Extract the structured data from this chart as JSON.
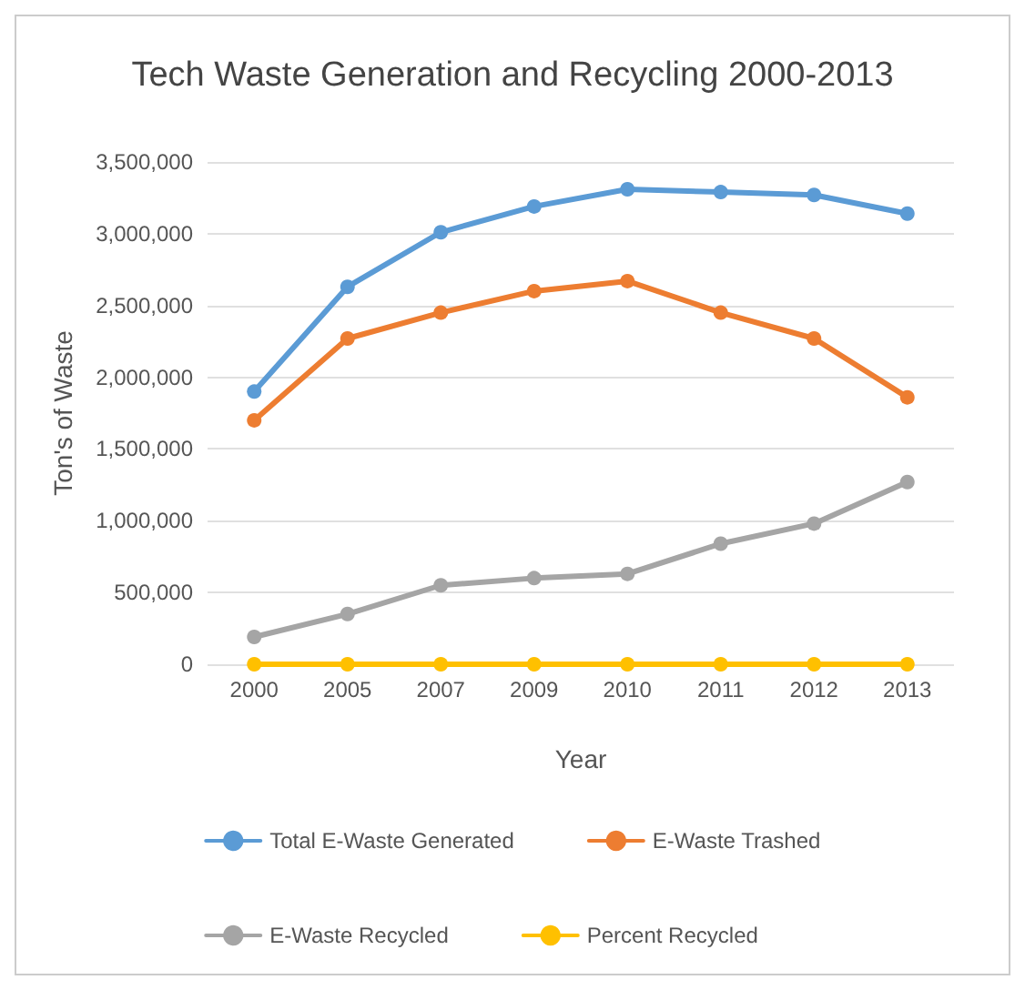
{
  "chart_data": {
    "type": "line",
    "title": "Tech Waste Generation and Recycling 2000-2013",
    "xlabel": "Year",
    "ylabel": "Ton's of Waste",
    "categories": [
      "2000",
      "2005",
      "2007",
      "2009",
      "2010",
      "2011",
      "2012",
      "2013"
    ],
    "series": [
      {
        "name": "Total E-Waste Generated",
        "color": "#5b9bd5",
        "values": [
          1900000,
          2630000,
          3010000,
          3190000,
          3310000,
          3290000,
          3270000,
          3140000
        ]
      },
      {
        "name": "E-Waste Trashed",
        "color": "#ed7d31",
        "values": [
          1700000,
          2270000,
          2450000,
          2600000,
          2670000,
          2450000,
          2270000,
          1860000
        ]
      },
      {
        "name": "E-Waste Recycled",
        "color": "#a5a5a5",
        "values": [
          190000,
          350000,
          550000,
          600000,
          630000,
          840000,
          980000,
          1270000
        ]
      },
      {
        "name": "Percent Recycled",
        "color": "#ffc000",
        "values": [
          0,
          0,
          0,
          0,
          0,
          0,
          0,
          0
        ]
      }
    ],
    "ylim": [
      0,
      3500000
    ],
    "yticks": [
      0,
      {
        "value": 500000,
        "label": "500,000"
      },
      {
        "value": 1000000,
        "label": "1,000,000"
      },
      {
        "value": 1500000,
        "label": "1,500,000"
      },
      {
        "value": 2000000,
        "label": "2,000,000"
      },
      {
        "value": 2500000,
        "label": "2,500,000"
      },
      {
        "value": 3000000,
        "label": "3,000,000"
      },
      {
        "value": 3500000,
        "label": "3,500,000"
      }
    ],
    "grid": "y",
    "legend": "bottom",
    "marker": "circle",
    "line_style": "solid"
  }
}
